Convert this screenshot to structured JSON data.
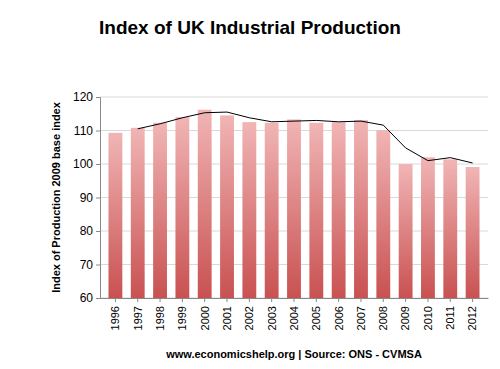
{
  "chart_data": {
    "type": "bar",
    "title": "Index of UK Industrial Production",
    "y_label": "Index of Production 2009 base index",
    "x_label": "www.economicshelp.org | Source: ONS - CVMSA",
    "categories": [
      "1996",
      "1997",
      "1998",
      "1999",
      "2000",
      "2001",
      "2002",
      "2003",
      "2004",
      "2005",
      "2006",
      "2007",
      "2008",
      "2009",
      "2010",
      "2011",
      "2012"
    ],
    "series": [
      {
        "type": "bar",
        "color": "#e05a5a",
        "values": [
          109.3,
          110.8,
          112.3,
          114.0,
          116.2,
          114.5,
          112.5,
          112.3,
          113.3,
          112.3,
          112.5,
          113.1,
          110.1,
          100.0,
          102.0,
          101.4,
          99.1
        ]
      },
      {
        "type": "line",
        "color": "#000000",
        "values": [
          null,
          110.5,
          112.0,
          113.8,
          115.3,
          115.5,
          113.8,
          112.6,
          112.8,
          113.0,
          112.6,
          112.8,
          111.6,
          104.8,
          101.0,
          101.9,
          100.3
        ]
      }
    ],
    "ylim": [
      60,
      120
    ],
    "yticks": [
      60,
      70,
      80,
      90,
      100,
      110,
      120
    ],
    "grid": true
  }
}
